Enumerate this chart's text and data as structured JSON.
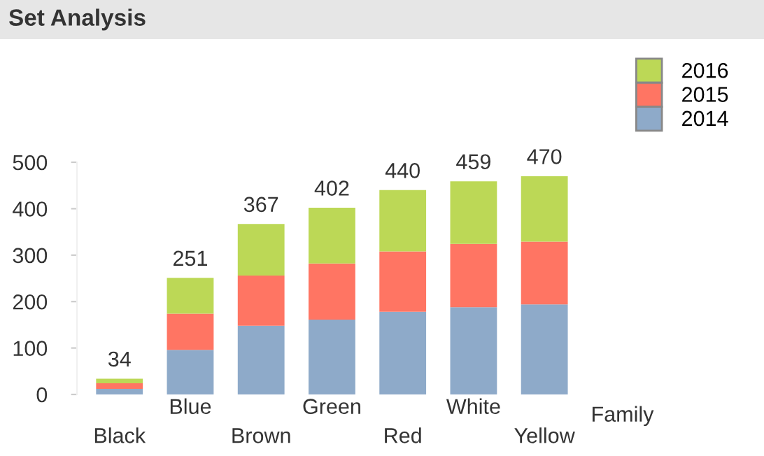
{
  "chart_data": {
    "type": "bar",
    "title": "Set Analysis",
    "xlabel": "Family",
    "stacked": true,
    "categories": [
      "Black",
      "Blue",
      "Brown",
      "Green",
      "Red",
      "White",
      "Yellow"
    ],
    "series": [
      {
        "name": "2014",
        "color": "#8eaac9",
        "values": [
          12,
          96,
          148,
          161,
          178,
          188,
          194
        ]
      },
      {
        "name": "2015",
        "color": "#ff7563",
        "values": [
          12,
          78,
          108,
          121,
          130,
          136,
          135
        ]
      },
      {
        "name": "2016",
        "color": "#bcd856",
        "values": [
          10,
          77,
          111,
          120,
          132,
          135,
          141
        ]
      }
    ],
    "totals": [
      "34",
      "251",
      "367",
      "402",
      "440",
      "459",
      "470"
    ],
    "ylim": [
      0,
      500
    ],
    "yticks": [
      0,
      100,
      200,
      300,
      400,
      500
    ],
    "grid": false,
    "legend": "top right"
  }
}
